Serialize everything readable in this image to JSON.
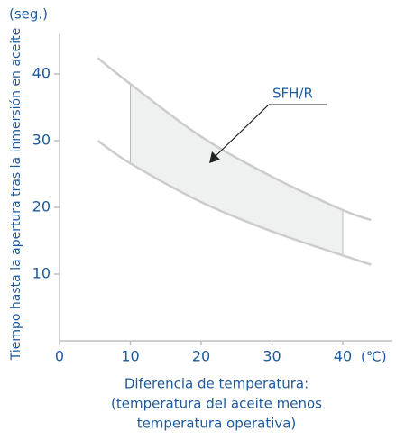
{
  "chart_data": {
    "type": "band",
    "y_unit": "(seg.)",
    "x_unit": "(℃)",
    "ylabel": "Tiempo hasta la apertura tras la inmersión en aceite",
    "xlabel": [
      "Diferencia de temperatura:",
      "(temperatura del aceite menos",
      "temperatura operativa)"
    ],
    "annotation": "SFH/R",
    "x": [
      5.4,
      10,
      20,
      30,
      40,
      44
    ],
    "series": [
      {
        "color": "#cccccc",
        "values": [
          42.4,
          38.5,
          30.6,
          24.6,
          19.6,
          18.1
        ]
      },
      {
        "color": "#cccccc",
        "values": [
          30,
          26.6,
          20.8,
          16.4,
          12.8,
          11.4
        ]
      }
    ],
    "shade_x": [
      10,
      40
    ],
    "shade_color": "#eff1f1",
    "xlim": [
      0,
      47
    ],
    "ylim": [
      0,
      46
    ],
    "xticks": [
      0,
      10,
      20,
      30,
      40
    ],
    "yticks": [
      10,
      20,
      30,
      40
    ]
  }
}
